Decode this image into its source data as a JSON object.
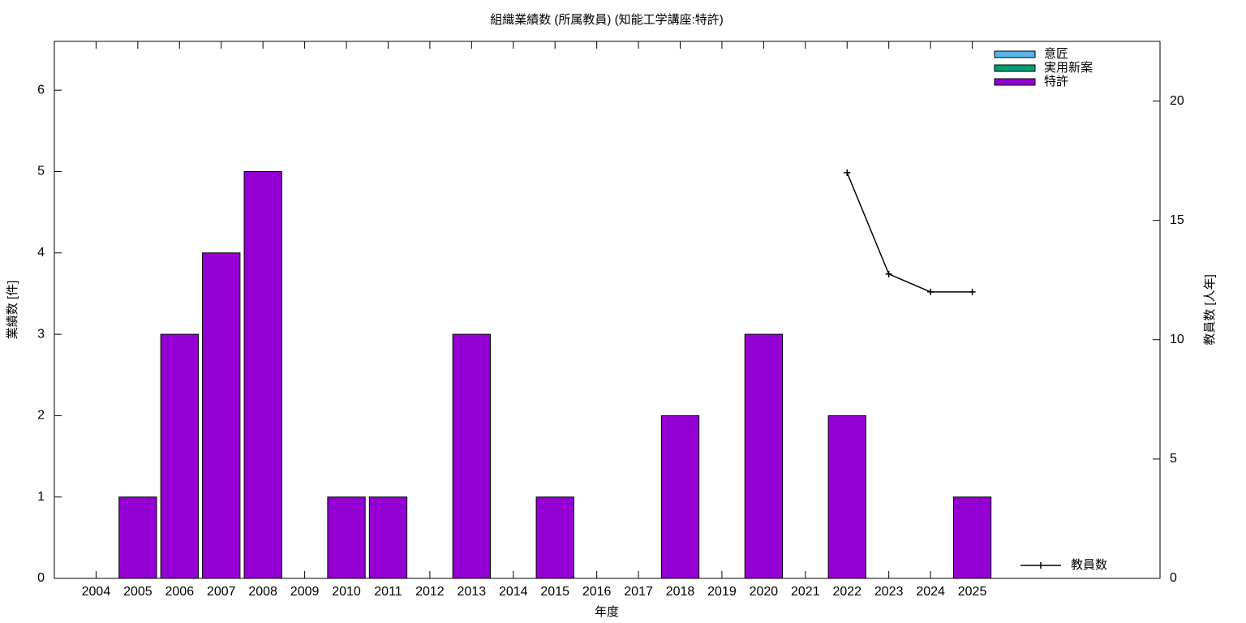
{
  "chart_data": {
    "type": "bar",
    "title": "組織業績数 (所属教員) (知能工学講座:特許)",
    "xlabel": "年度",
    "ylabel": "業績数 [件]",
    "y2label": "教員数 [人年]",
    "categories": [
      "2004",
      "2005",
      "2006",
      "2007",
      "2008",
      "2009",
      "2010",
      "2011",
      "2012",
      "2013",
      "2014",
      "2015",
      "2016",
      "2017",
      "2018",
      "2019",
      "2020",
      "2021",
      "2022",
      "2023",
      "2024",
      "2025"
    ],
    "stacked": true,
    "series": [
      {
        "name": "意匠",
        "color": "#56b4e9",
        "values": [
          0,
          0,
          0,
          0,
          0,
          0,
          0,
          0,
          0,
          0,
          0,
          0,
          0,
          0,
          0,
          0,
          0,
          0,
          0,
          0,
          0,
          0
        ]
      },
      {
        "name": "実用新案",
        "color": "#009e73",
        "values": [
          0,
          0,
          0,
          0,
          0,
          0,
          0,
          0,
          0,
          0,
          0,
          0,
          0,
          0,
          0,
          0,
          0,
          0,
          0,
          0,
          0,
          0
        ]
      },
      {
        "name": "特許",
        "color": "#9400d3",
        "values": [
          0,
          1,
          3,
          4,
          5,
          0,
          1,
          1,
          0,
          3,
          0,
          1,
          0,
          0,
          2,
          0,
          3,
          0,
          2,
          0,
          0,
          1
        ]
      },
      {
        "name": "教員数",
        "type": "line",
        "axis": "y2",
        "color": "#000000",
        "values": [
          null,
          null,
          null,
          null,
          null,
          null,
          null,
          null,
          null,
          null,
          null,
          null,
          null,
          null,
          null,
          null,
          null,
          null,
          17,
          12.75,
          12,
          12
        ]
      }
    ],
    "ylim": [
      0,
      6.6
    ],
    "yticks": [
      0,
      1,
      2,
      3,
      4,
      5,
      6
    ],
    "y2lim": [
      0,
      22.5
    ],
    "y2ticks": [
      0,
      5,
      10,
      15,
      20
    ],
    "legend": "top-right"
  }
}
